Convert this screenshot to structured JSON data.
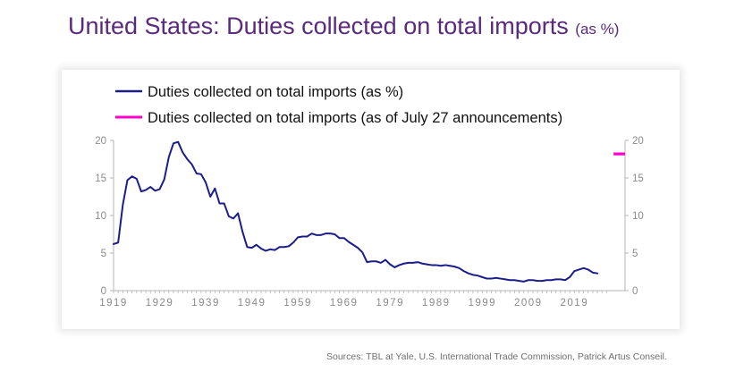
{
  "header": {
    "title": "United States: Duties collected on total imports",
    "title_suffix": "(as %)"
  },
  "source": "Sources: TBL at Yale, U.S. International Trade Commission, Patrick Artus Conseil.",
  "colors": {
    "title": "#5a2a7e",
    "series_main": "#1b1d8a",
    "series_announcement": "#ff00cc"
  },
  "chart_data": {
    "type": "line",
    "title": "",
    "xlabel": "",
    "ylabel": "",
    "xlim": [
      1919,
      2030
    ],
    "ylim": [
      0,
      20
    ],
    "x_ticks": [
      "1919",
      "1929",
      "1939",
      "1949",
      "1959",
      "1969",
      "1979",
      "1989",
      "1999",
      "2009",
      "2019"
    ],
    "y_ticks": [
      "0",
      "5",
      "10",
      "15",
      "20"
    ],
    "y2_ticks": [
      "0",
      "5",
      "10",
      "15",
      "20"
    ],
    "grid": false,
    "legend_position": "top-left",
    "series": [
      {
        "name": "Duties collected on total imports (as %)",
        "axis": "left",
        "x": [
          1919,
          1920,
          1921,
          1922,
          1923,
          1924,
          1925,
          1926,
          1927,
          1928,
          1929,
          1930,
          1931,
          1932,
          1933,
          1934,
          1935,
          1936,
          1937,
          1938,
          1939,
          1940,
          1941,
          1942,
          1943,
          1944,
          1945,
          1946,
          1947,
          1948,
          1949,
          1950,
          1951,
          1952,
          1953,
          1954,
          1955,
          1956,
          1957,
          1958,
          1959,
          1960,
          1961,
          1962,
          1963,
          1964,
          1965,
          1966,
          1967,
          1968,
          1969,
          1970,
          1971,
          1972,
          1973,
          1974,
          1975,
          1976,
          1977,
          1978,
          1979,
          1980,
          1981,
          1982,
          1983,
          1984,
          1985,
          1986,
          1987,
          1988,
          1989,
          1990,
          1991,
          1992,
          1993,
          1994,
          1995,
          1996,
          1997,
          1998,
          1999,
          2000,
          2001,
          2002,
          2003,
          2004,
          2005,
          2006,
          2007,
          2008,
          2009,
          2010,
          2011,
          2012,
          2013,
          2014,
          2015,
          2016,
          2017,
          2018,
          2019,
          2020,
          2021,
          2022,
          2023,
          2024
        ],
        "values": [
          6.2,
          6.4,
          11.4,
          14.7,
          15.2,
          14.9,
          13.2,
          13.4,
          13.8,
          13.3,
          13.5,
          14.8,
          17.8,
          19.6,
          19.8,
          18.4,
          17.5,
          16.8,
          15.6,
          15.5,
          14.4,
          12.5,
          13.6,
          11.6,
          11.6,
          9.9,
          9.6,
          10.3,
          7.8,
          5.8,
          5.7,
          6.1,
          5.6,
          5.3,
          5.5,
          5.4,
          5.8,
          5.8,
          5.9,
          6.4,
          7.1,
          7.2,
          7.2,
          7.6,
          7.4,
          7.4,
          7.6,
          7.6,
          7.5,
          7.0,
          7.0,
          6.5,
          6.1,
          5.7,
          5.1,
          3.8,
          3.9,
          3.9,
          3.7,
          4.1,
          3.5,
          3.1,
          3.4,
          3.6,
          3.7,
          3.7,
          3.8,
          3.6,
          3.5,
          3.4,
          3.4,
          3.3,
          3.4,
          3.3,
          3.2,
          3.0,
          2.6,
          2.3,
          2.1,
          2.0,
          1.8,
          1.6,
          1.6,
          1.7,
          1.6,
          1.5,
          1.4,
          1.4,
          1.3,
          1.2,
          1.4,
          1.4,
          1.3,
          1.3,
          1.4,
          1.4,
          1.5,
          1.5,
          1.4,
          1.8,
          2.6,
          2.8,
          3.0,
          2.8,
          2.4,
          2.3
        ]
      },
      {
        "name": "Duties collected on total imports (as of July 27 announcements)",
        "axis": "right",
        "x": [
          2027.5,
          2030
        ],
        "values": [
          18.2,
          18.2
        ]
      }
    ]
  }
}
